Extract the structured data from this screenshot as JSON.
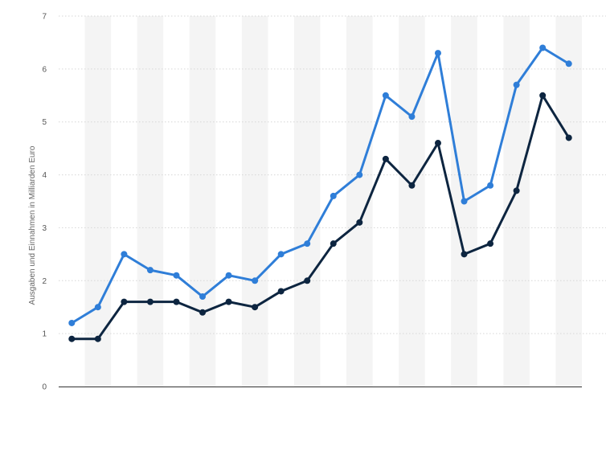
{
  "chart_data": {
    "type": "line",
    "title": "",
    "xlabel": "",
    "ylabel": "Ausgaben und Einnahmen in Milliarden Euro",
    "ylim": [
      0,
      7
    ],
    "yticks": [
      0,
      1,
      2,
      3,
      4,
      5,
      6,
      7
    ],
    "grid": true,
    "legend": "none",
    "x": [
      1,
      2,
      3,
      4,
      5,
      6,
      7,
      8,
      9,
      10,
      11,
      12,
      13,
      14,
      15,
      16,
      17,
      18,
      19,
      20
    ],
    "series": [
      {
        "color": "#2f7ed8",
        "values": [
          1.2,
          1.5,
          2.5,
          2.2,
          2.1,
          1.7,
          2.1,
          2.0,
          2.5,
          2.7,
          3.6,
          4.0,
          5.5,
          5.1,
          6.3,
          3.5,
          3.8,
          5.7,
          6.4,
          6.1
        ]
      },
      {
        "color": "#0d2540",
        "values": [
          0.9,
          0.9,
          1.6,
          1.6,
          1.6,
          1.4,
          1.6,
          1.5,
          1.8,
          2.0,
          2.7,
          3.1,
          4.3,
          3.8,
          4.6,
          2.5,
          2.7,
          3.7,
          5.5,
          4.7
        ]
      }
    ]
  }
}
